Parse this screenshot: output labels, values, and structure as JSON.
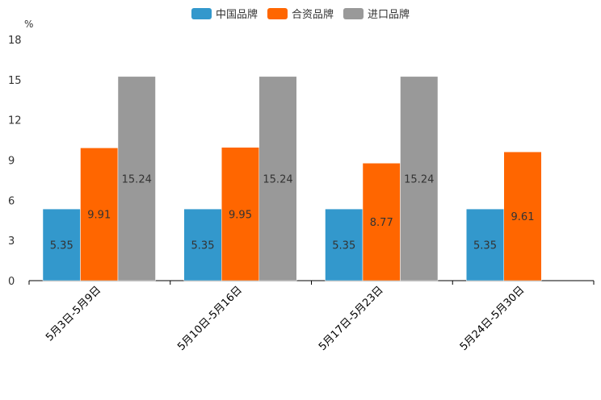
{
  "chart_data": {
    "type": "bar",
    "unit_label": "%",
    "categories": [
      "5月3日-5月9日",
      "5月10日-5月16日",
      "5月17日-5月23日",
      "5月24日-5月30日"
    ],
    "series": [
      {
        "name": "中国品牌",
        "color": "#3398cc",
        "values": [
          5.35,
          5.35,
          5.35,
          5.35
        ]
      },
      {
        "name": "合资品牌",
        "color": "#ff6600",
        "values": [
          9.91,
          9.95,
          8.77,
          9.61
        ]
      },
      {
        "name": "进口品牌",
        "color": "#999999",
        "values": [
          15.24,
          15.24,
          15.24,
          null
        ]
      }
    ],
    "ylim": [
      0,
      18
    ],
    "yticks": [
      0,
      3,
      6,
      9,
      12,
      15,
      18
    ],
    "legend_position": "top-center",
    "grid": false
  }
}
